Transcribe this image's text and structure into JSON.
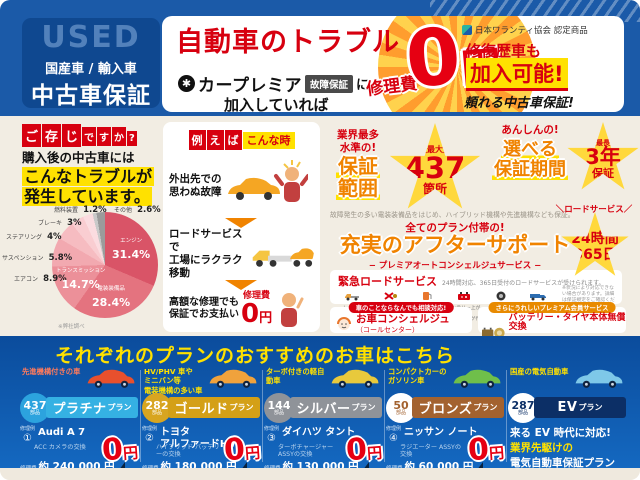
{
  "colors": {
    "red": "#d7000f",
    "yellow": "#ffe100",
    "orange": "#f08300",
    "header_blue": "#1b5aa8",
    "star_yellow": "#ffd83c"
  },
  "header": {
    "used": "USED",
    "line1": "国産車 / 輸入車",
    "line2": "中古車保証",
    "title": "自動車のトラブル",
    "brand_logo": "✱",
    "brand": "カープレミア",
    "badge": "故障保証",
    "ni": "に",
    "join": "加入していれば",
    "repair_label": "修理費",
    "zero": "0",
    "yen": "円",
    "assoc": "日本ワランティ協会 認定商品",
    "his1": "修復歴車も",
    "his2": "加入可能!",
    "his3": "頼れる中古車保証!"
  },
  "intro": {
    "know_big": [
      "ご",
      "存",
      "じ"
    ],
    "know_small": [
      "で",
      "す",
      "か",
      "?"
    ],
    "lead1": "購入後の中古車には",
    "lead2": "こんなトラブルが",
    "lead3": "発生しています。",
    "note": "※弊社調べ"
  },
  "chart_data": {
    "type": "pie",
    "title": "購入後の中古車のトラブル内訳",
    "labels": [
      "エンジン",
      "電装装備品",
      "トランスミッション",
      "エアコン",
      "サスペンション",
      "ステアリング",
      "ブレーキ",
      "燃料装置",
      "その他"
    ],
    "values": [
      31.4,
      28.4,
      14.7,
      8.9,
      5.8,
      4,
      3,
      1.2,
      2.6
    ],
    "colors": [
      "#d95467",
      "#e4737f",
      "#ec9099",
      "#f2a9b0",
      "#f6bcc1",
      "#f9cdd1",
      "#fbdce0",
      "#c9c9c9",
      "#9b9b9b"
    ],
    "start_angle_deg": 0,
    "direction": "clockwise",
    "legend_position": "callouts"
  },
  "example": {
    "head_red": [
      "例",
      "え",
      "ば"
    ],
    "head_yellow": "こんな時",
    "step1a": "外出先での",
    "step1b": "思わぬ故障",
    "step2a": "ロードサービスで",
    "step2b": "工場にラクラク移動",
    "step3a": "高額な修理でも",
    "step3b": "保証でお支払い",
    "price_label": "修理費",
    "price_value": "0",
    "price_en": "円"
  },
  "features": {
    "a_tag1": "業界最多",
    "a_tag2": "水準の!",
    "a_t1": "保証",
    "a_t2": "範囲",
    "a_star_top": "＼最大／",
    "a_star_num": "437",
    "a_star_unit": "箇所",
    "b_tag": "あんしんの!",
    "b_t1": "選べる",
    "b_t2": "保証期間",
    "b_star_top": "＼最長／",
    "b_star_num": "3年",
    "b_star_unit": "保証",
    "note": "故障発生の多い電装装備品をはじめ、ハイブリッド機構や先進機構なども保証。",
    "s_tag": "全てのプラン付帯の!",
    "s_title": "充実のアフターサポート",
    "s_sub": "− プレミアオートコンシェルジュサービス −",
    "rs_label": "＼ロードサービス／",
    "rs_1": "24時間",
    "rs_2": "365日"
  },
  "emergency": {
    "title": "緊急ロードサービス",
    "desc": "24時間対応、365日受付のロードサービスが受けられます。",
    "items": [
      {
        "label1": "レッカー",
        "label2": "牽引"
      },
      {
        "label1": "鍵の",
        "label2": "閉じ込み"
      },
      {
        "label1": "ガス欠",
        "label2": "給油"
      },
      {
        "label1": "バッテリー上がり",
        "label2": "ジャンピング作業"
      },
      {
        "label1": "パンク時の",
        "label2": "タイヤ交換"
      },
      {
        "label1": "車両",
        "label2": "運搬"
      }
    ],
    "note": "※状況により対応できない場合があります。詳細は保証規定をご確認ください。"
  },
  "concierge": {
    "pill": "車のことならなんでも相談対応!",
    "title": "お車コンシェルジュ",
    "sub": "（コールセンター）"
  },
  "premium": {
    "pill": "さらにうれしいプレミアム会員サービス",
    "title": "バッテリー・タイヤ本体無償交換",
    "sub": "ロードサービス出動時限定"
  },
  "plans": {
    "title": "それぞれのプランのおすすめのお車はこちら",
    "example_label": "修理例",
    "cost_label": "修理費",
    "parts_unit": "部品",
    "zero": "0",
    "yen": "円",
    "items": [
      {
        "target1": "先進機構付きの車",
        "target2": "",
        "target3": "",
        "target_color": "#ff7a5c",
        "parts": "437",
        "badge_bg": "#2ca3de",
        "badge_fg": "#ffffff",
        "box_color": "#35b1e3",
        "name": "プラチナ",
        "suffix": "プラン",
        "no": "①",
        "car": "Audi A 7",
        "car2": "",
        "repair": "ACC カメラの交換",
        "cost": "約 240,000 円",
        "car_color": "#e8502d"
      },
      {
        "target1": "HV/PHV 車や",
        "target2": "ミニバン等",
        "target3": "電装機構の多い車",
        "target_color": "#ffe100",
        "parts": "282",
        "badge_bg": "#d8a520",
        "badge_fg": "#ffffff",
        "box_color": "#d4a017",
        "name": "ゴールド",
        "suffix": "プラン",
        "no": "②",
        "car": "トヨタ",
        "car2": "アルファードHV",
        "repair": "ハイブリッド バッテリーの交換",
        "cost": "約 180,000 円",
        "car_color": "#f0a23c"
      },
      {
        "target1": "ターボ付きの軽自動車",
        "target2": "",
        "target3": "",
        "target_color": "#ffe100",
        "parts": "144",
        "badge_bg": "#8f9399",
        "badge_fg": "#ffffff",
        "box_color": "#8f9399",
        "name": "シルバー",
        "suffix": "プラン",
        "no": "③",
        "car": "ダイハツ タント",
        "car2": "",
        "repair": "ターボチャージャー ASSYの交換",
        "cost": "約 130,000 円",
        "car_color": "#e8c93c"
      },
      {
        "target1": "コンパクトカーの",
        "target2": "ガソリン車",
        "target3": "",
        "target_color": "#ffe100",
        "parts": "50",
        "badge_bg": "#ffffff",
        "badge_fg": "#a3622f",
        "box_color": "#a3622f",
        "name": "ブロンズ",
        "suffix": "プラン",
        "no": "④",
        "car": "ニッサン ノート",
        "car2": "",
        "repair": "ラジエーター ASSYの交換",
        "cost": "約 60,000 円",
        "car_color": "#6fbf4a"
      },
      {
        "target1": "国産の電気自動車",
        "target2": "",
        "target3": "",
        "target_color": "#ffe100",
        "parts": "287",
        "badge_bg": "#ffffff",
        "badge_fg": "#0c2f66",
        "box_color": "#0c2f66",
        "name": "EV",
        "suffix": "プラン",
        "no": "",
        "car": "",
        "car2": "",
        "repair": "",
        "cost": "",
        "car_color": "#7ec8e8",
        "msg1": "来る EV 時代に対応!",
        "msg2": "業界先駆けの",
        "msg3": "電気自動車保証プラン"
      }
    ]
  }
}
